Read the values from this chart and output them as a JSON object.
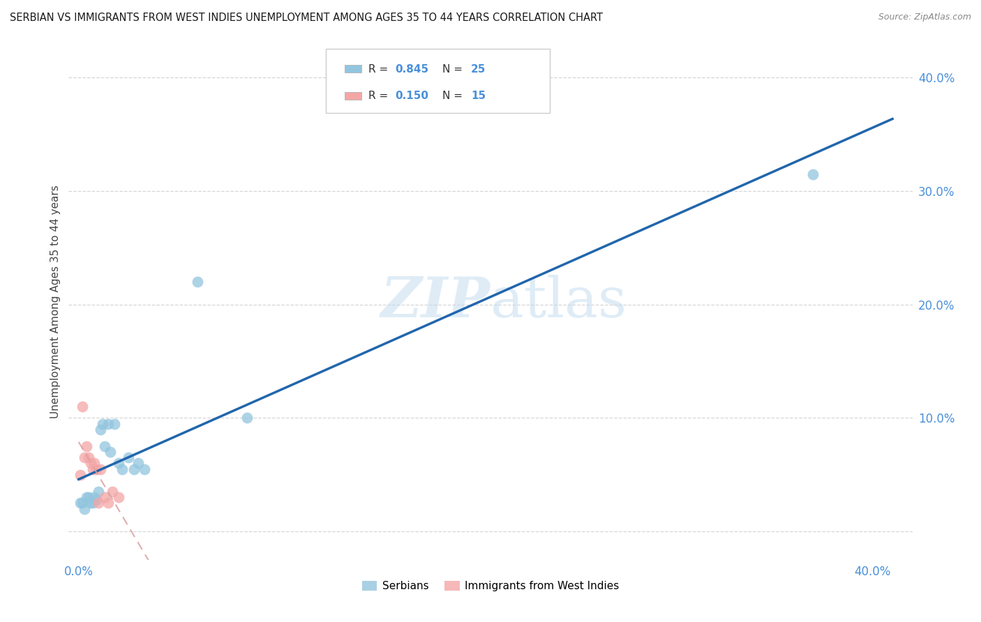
{
  "title": "SERBIAN VS IMMIGRANTS FROM WEST INDIES UNEMPLOYMENT AMONG AGES 35 TO 44 YEARS CORRELATION CHART",
  "source": "Source: ZipAtlas.com",
  "ylabel_label": "Unemployment Among Ages 35 to 44 years",
  "xlim": [
    -0.005,
    0.42
  ],
  "ylim": [
    -0.025,
    0.43
  ],
  "serbian_R": 0.845,
  "serbian_N": 25,
  "westindies_R": 0.15,
  "westindies_N": 15,
  "serbian_color": "#92c5de",
  "westindies_color": "#f4a6a6",
  "serbian_line_color": "#2166ac",
  "westindies_line_color": "#d9a0a0",
  "legend_label_serbian": "Serbians",
  "legend_label_westindies": "Immigrants from West Indies",
  "watermark_zip": "ZIP",
  "watermark_atlas": "atlas",
  "background_color": "#ffffff",
  "serbian_x": [
    0.001,
    0.002,
    0.003,
    0.004,
    0.005,
    0.006,
    0.007,
    0.008,
    0.009,
    0.01,
    0.011,
    0.012,
    0.013,
    0.015,
    0.016,
    0.018,
    0.02,
    0.022,
    0.025,
    0.028,
    0.03,
    0.033,
    0.06,
    0.085,
    0.37
  ],
  "serbian_y": [
    0.025,
    0.025,
    0.02,
    0.03,
    0.03,
    0.025,
    0.025,
    0.03,
    0.028,
    0.035,
    0.09,
    0.095,
    0.075,
    0.095,
    0.07,
    0.095,
    0.06,
    0.055,
    0.065,
    0.055,
    0.06,
    0.055,
    0.22,
    0.1,
    0.315
  ],
  "westindies_x": [
    0.001,
    0.002,
    0.003,
    0.004,
    0.005,
    0.006,
    0.007,
    0.008,
    0.009,
    0.01,
    0.011,
    0.013,
    0.015,
    0.017,
    0.02
  ],
  "westindies_y": [
    0.05,
    0.11,
    0.065,
    0.075,
    0.065,
    0.06,
    0.055,
    0.06,
    0.055,
    0.025,
    0.055,
    0.03,
    0.025,
    0.035,
    0.03
  ],
  "x_ticks": [
    0.0,
    0.05,
    0.1,
    0.15,
    0.2,
    0.25,
    0.3,
    0.35,
    0.4
  ],
  "y_ticks": [
    0.0,
    0.1,
    0.2,
    0.3,
    0.4
  ],
  "tick_color": "#4a90d9",
  "grid_color": "#cccccc",
  "r_n_label_color": "#000000",
  "r_n_value_color": "#4a90d9"
}
